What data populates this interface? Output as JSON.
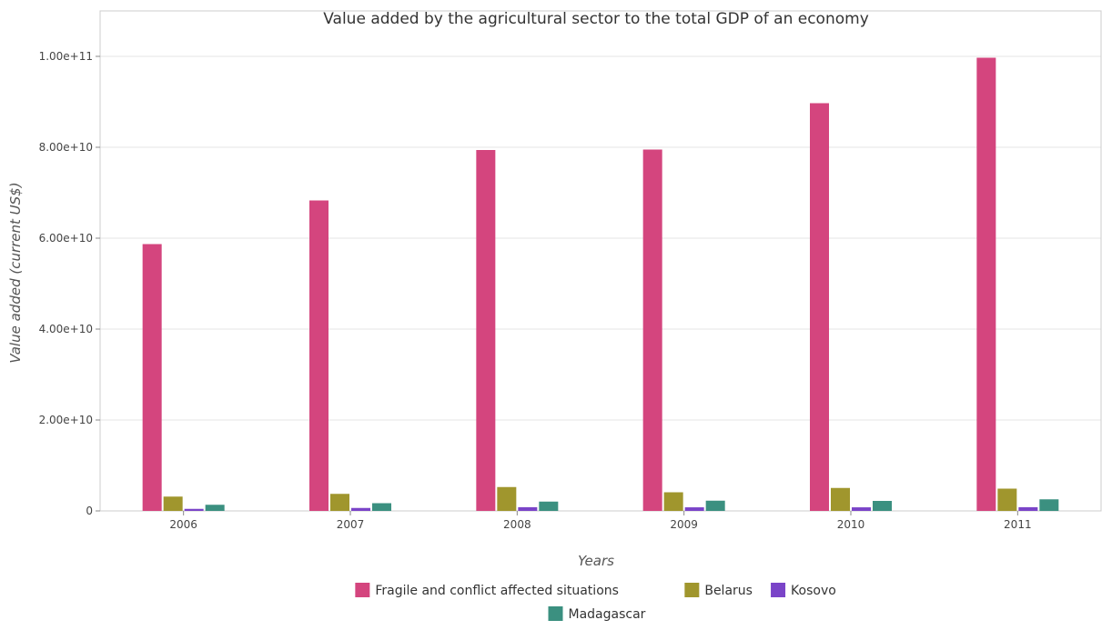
{
  "chart_data": {
    "type": "bar",
    "title": "Value added by the agricultural sector to the total GDP of an economy",
    "xlabel": "Years",
    "ylabel": "Value added (current US$)",
    "categories": [
      "2006",
      "2007",
      "2008",
      "2009",
      "2010",
      "2011"
    ],
    "ylim": [
      0,
      110000000000
    ],
    "yticks": [
      0,
      20000000000,
      40000000000,
      60000000000,
      80000000000,
      100000000000
    ],
    "ytick_labels": [
      "0",
      "2.00e+10",
      "4.00e+10",
      "6.00e+10",
      "8.00e+10",
      "1.00e+11"
    ],
    "grid": true,
    "legend_position": "bottom-center",
    "series": [
      {
        "name": "Fragile and conflict affected situations",
        "color": "#d4457e",
        "values": [
          58700000000,
          68300000000,
          79400000000,
          79500000000,
          89700000000,
          99700000000
        ]
      },
      {
        "name": "Belarus",
        "color": "#a0962d",
        "values": [
          3150000000,
          3750000000,
          5250000000,
          4100000000,
          5050000000,
          4900000000
        ]
      },
      {
        "name": "Kosovo",
        "color": "#7a44c8",
        "values": [
          450000000,
          650000000,
          820000000,
          790000000,
          790000000,
          820000000
        ]
      },
      {
        "name": "Madagascar",
        "color": "#3b9080",
        "values": [
          1350000000,
          1700000000,
          2050000000,
          2250000000,
          2200000000,
          2550000000
        ]
      }
    ]
  }
}
